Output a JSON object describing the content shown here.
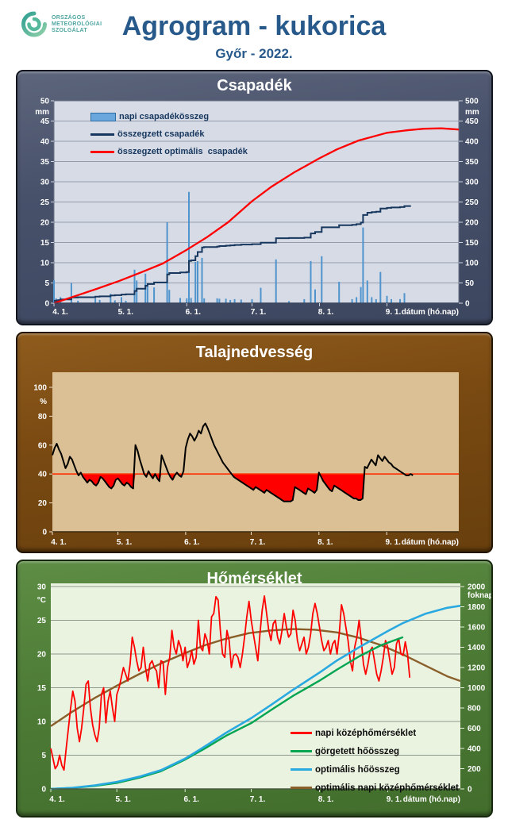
{
  "header": {
    "logo": {
      "lines": [
        "ORSZÁGOS",
        "METEOROLÓGIAI",
        "SZOLGÁLAT"
      ]
    },
    "title": "Agrogram - kukorica",
    "subtitle": "Győr - 2022."
  },
  "x_axis": {
    "label": "dátum (hó.nap)",
    "ticks": [
      {
        "day": 0,
        "label": "4. 1."
      },
      {
        "day": 30,
        "label": "5. 1."
      },
      {
        "day": 61,
        "label": "6. 1."
      },
      {
        "day": 91,
        "label": "7. 1."
      },
      {
        "day": 122,
        "label": "8. 1."
      },
      {
        "day": 153,
        "label": "9. 1."
      }
    ],
    "total_days": 186
  },
  "chart_data": [
    {
      "type": "bar",
      "title": "Csapadék",
      "left_axis": {
        "unit": "mm",
        "min": 0,
        "max": 50,
        "step": 5,
        "ticks": [
          "0",
          "5",
          "10",
          "15",
          "20",
          "25",
          "30",
          "35",
          "40",
          "45",
          "50"
        ]
      },
      "right_axis": {
        "unit": "mm",
        "min": 0,
        "max": 500,
        "step": 50,
        "ticks": [
          "0",
          "50",
          "100",
          "150",
          "200",
          "250",
          "300",
          "350",
          "400",
          "450",
          "500"
        ]
      },
      "legend": [
        {
          "label": "napi csapadékösszeg",
          "swatch": "bar",
          "color": "#6aa7dd"
        },
        {
          "label": "összegzett csapadék",
          "swatch": "line",
          "color": "#17375e"
        },
        {
          "label": "összegzett optimális  csapadék",
          "swatch": "line",
          "color": "#ff0000"
        }
      ],
      "bars_day_mm": [
        [
          0,
          5.7
        ],
        [
          1,
          1.2
        ],
        [
          2,
          0.8
        ],
        [
          3,
          1.5
        ],
        [
          8,
          5.0
        ],
        [
          11,
          0.6
        ],
        [
          19,
          1.2
        ],
        [
          21,
          0.8
        ],
        [
          26,
          2.3
        ],
        [
          28,
          0.7
        ],
        [
          31,
          1.5
        ],
        [
          33,
          0.6
        ],
        [
          37,
          8.3
        ],
        [
          38,
          5.6
        ],
        [
          42,
          7.3
        ],
        [
          43,
          4.2
        ],
        [
          46,
          3.9
        ],
        [
          52,
          20.0
        ],
        [
          53,
          3.3
        ],
        [
          58,
          1.3
        ],
        [
          61,
          1.2
        ],
        [
          62,
          27.5
        ],
        [
          63,
          1.3
        ],
        [
          65,
          10.2
        ],
        [
          66,
          10.4
        ],
        [
          68,
          11.2
        ],
        [
          69,
          1.2
        ],
        [
          75,
          1.2
        ],
        [
          76,
          1.1
        ],
        [
          79,
          1.1
        ],
        [
          81,
          0.8
        ],
        [
          83,
          1.0
        ],
        [
          86,
          0.9
        ],
        [
          91,
          1.0
        ],
        [
          95,
          3.8
        ],
        [
          102,
          10.8
        ],
        [
          108,
          0.5
        ],
        [
          115,
          1.0
        ],
        [
          118,
          10.4
        ],
        [
          120,
          3.4
        ],
        [
          123,
          11.6
        ],
        [
          131,
          5.3
        ],
        [
          137,
          1.0
        ],
        [
          139,
          1.5
        ],
        [
          141,
          4.0
        ],
        [
          142,
          18.7
        ],
        [
          144,
          5.6
        ],
        [
          146,
          1.5
        ],
        [
          148,
          1.0
        ],
        [
          150,
          7.7
        ],
        [
          153,
          1.8
        ],
        [
          155,
          1.0
        ],
        [
          159,
          1.0
        ],
        [
          161,
          2.5
        ]
      ],
      "cumulative_is_sum_of_bars": true,
      "cumulative_end_day": 164,
      "optimal_cumulative_mm": [
        [
          0,
          0
        ],
        [
          10,
          18
        ],
        [
          20,
          36
        ],
        [
          30,
          55
        ],
        [
          40,
          76
        ],
        [
          50,
          98
        ],
        [
          61,
          132
        ],
        [
          70,
          162
        ],
        [
          80,
          200
        ],
        [
          91,
          252
        ],
        [
          100,
          288
        ],
        [
          110,
          322
        ],
        [
          122,
          358
        ],
        [
          130,
          380
        ],
        [
          140,
          402
        ],
        [
          153,
          421
        ],
        [
          162,
          427
        ],
        [
          170,
          431
        ],
        [
          178,
          432
        ],
        [
          186,
          429
        ]
      ],
      "colors": {
        "bar": "#4f94cd",
        "cumulative": "#17375e",
        "optimal": "#ff0000",
        "panel": "#47516a",
        "plot_bg": "#d6dbe6",
        "grid": "#949cae"
      }
    },
    {
      "type": "line",
      "title": "Talajnedvesség",
      "left_axis": {
        "unit": "%",
        "min": 0,
        "max": 100,
        "step": 20,
        "ticks": [
          "0",
          "20",
          "40",
          "60",
          "80",
          "100"
        ]
      },
      "threshold_pct": 40,
      "soil_moisture_pct_daily": [
        53,
        58,
        61,
        57,
        54,
        49,
        44,
        47,
        52,
        50,
        46,
        42,
        39,
        41,
        38,
        36,
        34,
        36,
        35,
        33,
        32,
        34,
        38,
        37,
        35,
        33,
        31,
        30,
        32,
        36,
        37,
        35,
        33,
        32,
        34,
        33,
        31,
        30,
        60,
        56,
        50,
        45,
        40,
        38,
        42,
        39,
        37,
        40,
        37,
        35,
        53,
        49,
        45,
        41,
        38,
        36,
        39,
        41,
        39,
        38,
        42,
        58,
        64,
        68,
        66,
        63,
        66,
        70,
        68,
        73,
        75,
        72,
        68,
        64,
        60,
        57,
        54,
        51,
        48,
        46,
        44,
        42,
        40,
        38,
        37,
        36,
        35,
        34,
        33,
        32,
        31,
        30,
        29,
        31,
        30,
        29,
        28,
        27,
        29,
        28,
        27,
        26,
        25,
        24,
        23,
        22,
        21,
        21,
        21,
        21,
        22,
        31,
        30,
        29,
        28,
        27,
        26,
        30,
        29,
        28,
        27,
        29,
        41,
        38,
        35,
        33,
        31,
        29,
        28,
        32,
        31,
        30,
        29,
        28,
        27,
        26,
        25,
        24,
        23,
        23,
        22,
        22,
        23,
        45,
        44,
        47,
        50,
        48,
        46,
        53,
        51,
        49,
        52,
        50,
        48,
        47,
        45,
        44,
        43,
        42,
        41,
        40,
        39,
        39,
        40,
        39
      ],
      "colors": {
        "line": "#000000",
        "deficit_fill": "#ff0000",
        "threshold": "#ff2e00",
        "panel": "#7a4a12",
        "plot_bg": "#dcc095"
      }
    },
    {
      "type": "line",
      "title": "Hőmérséklet",
      "left_axis": {
        "unit": "°C",
        "min": 0,
        "max": 30,
        "step": 5,
        "ticks": [
          "0",
          "5",
          "10",
          "15",
          "20",
          "25",
          "30"
        ]
      },
      "right_axis": {
        "unit": "foknap",
        "min": 0,
        "max": 2000,
        "step": 200,
        "ticks": [
          "0",
          "200",
          "400",
          "600",
          "800",
          "1000",
          "1200",
          "1400",
          "1600",
          "1800",
          "2000"
        ]
      },
      "legend": [
        {
          "label": "napi középhőmérséklet",
          "color": "#ff0000"
        },
        {
          "label": "görgetett hőösszeg",
          "color": "#00a551"
        },
        {
          "label": "optimális hőösszeg",
          "color": "#2aa9e1"
        },
        {
          "label": "optimális napi középhőmérséklet",
          "color": "#8a5f2a"
        }
      ],
      "daily_mean_temp_c": [
        6,
        4.5,
        3,
        3.5,
        5,
        3.5,
        2.8,
        6,
        9,
        12,
        14.5,
        13,
        9,
        7,
        9,
        12,
        15.5,
        16,
        12,
        9.5,
        8,
        7,
        9,
        14,
        15,
        9.8,
        13,
        14.5,
        12,
        10,
        14,
        15,
        16.5,
        18,
        17,
        16,
        18.5,
        22.5,
        21,
        19,
        17.5,
        18,
        21,
        18,
        16,
        18.5,
        19,
        18,
        17.5,
        15,
        19,
        18.8,
        14,
        18,
        19.5,
        23.5,
        21,
        20,
        22,
        21,
        19,
        21,
        18,
        19,
        20.5,
        18.5,
        19.5,
        25,
        21,
        20.5,
        23,
        22,
        20,
        25.5,
        26,
        28.5,
        28,
        23.5,
        20,
        19.5,
        23.5,
        22,
        18,
        19.8,
        20,
        19.5,
        18,
        20,
        22.5,
        25.5,
        27.8,
        25,
        23,
        21,
        19,
        23,
        26.5,
        28.6,
        26,
        23.5,
        22,
        24.5,
        25,
        22.5,
        21.5,
        23.5,
        26,
        24,
        22.5,
        23,
        26.5,
        25,
        22,
        20.5,
        21.5,
        22.5,
        20,
        21,
        23,
        26,
        27.5,
        26,
        24,
        22,
        20.5,
        21,
        22,
        20,
        21.5,
        22,
        20,
        23,
        27.3,
        26,
        24,
        22,
        19,
        17.5,
        21,
        22.5,
        25,
        22,
        18.5,
        17,
        18.5,
        20.5,
        21,
        19,
        17,
        16,
        17.5,
        19.5,
        22,
        21,
        19,
        17,
        18,
        21.5,
        22.3,
        20,
        19.8,
        21.8,
        20,
        16.5
      ],
      "optimal_daily_mean_temp_c": [
        [
          0,
          9.3
        ],
        [
          10,
          11.5
        ],
        [
          20,
          13.5
        ],
        [
          30,
          15.3
        ],
        [
          40,
          17
        ],
        [
          50,
          18.6
        ],
        [
          60,
          20
        ],
        [
          70,
          21.3
        ],
        [
          80,
          22.3
        ],
        [
          90,
          23.1
        ],
        [
          100,
          23.5
        ],
        [
          110,
          23.7
        ],
        [
          120,
          23.6
        ],
        [
          130,
          23.2
        ],
        [
          140,
          22.4
        ],
        [
          150,
          21.3
        ],
        [
          160,
          19.9
        ],
        [
          170,
          18.3
        ],
        [
          180,
          16.7
        ],
        [
          186,
          16
        ]
      ],
      "optimal_heat_sum_degree_days": [
        [
          0,
          0
        ],
        [
          10,
          12
        ],
        [
          20,
          35
        ],
        [
          30,
          70
        ],
        [
          40,
          120
        ],
        [
          50,
          185
        ],
        [
          61,
          300
        ],
        [
          70,
          420
        ],
        [
          80,
          560
        ],
        [
          91,
          700
        ],
        [
          100,
          830
        ],
        [
          110,
          980
        ],
        [
          122,
          1150
        ],
        [
          130,
          1270
        ],
        [
          140,
          1400
        ],
        [
          153,
          1560
        ],
        [
          160,
          1640
        ],
        [
          170,
          1730
        ],
        [
          180,
          1790
        ],
        [
          186,
          1810
        ]
      ],
      "rolling_heat_sum_degree_days": [
        [
          0,
          0
        ],
        [
          10,
          10
        ],
        [
          20,
          30
        ],
        [
          30,
          60
        ],
        [
          40,
          110
        ],
        [
          50,
          175
        ],
        [
          61,
          290
        ],
        [
          70,
          400
        ],
        [
          80,
          530
        ],
        [
          91,
          650
        ],
        [
          100,
          780
        ],
        [
          110,
          920
        ],
        [
          122,
          1070
        ],
        [
          130,
          1180
        ],
        [
          140,
          1310
        ],
        [
          150,
          1420
        ],
        [
          155,
          1460
        ],
        [
          160,
          1500
        ]
      ],
      "colors": {
        "panel": "#4e7d37",
        "plot_bg": "#eaf2e0",
        "grid": "#8d998d"
      }
    }
  ]
}
